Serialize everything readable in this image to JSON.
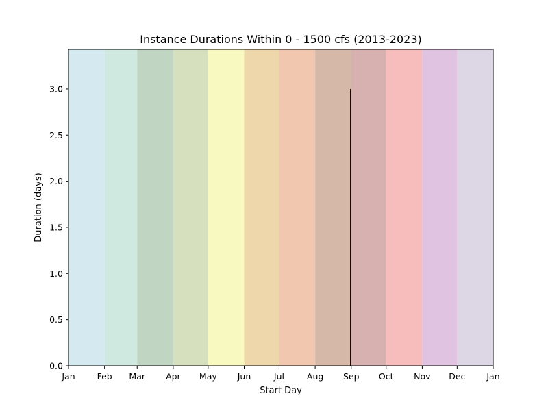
{
  "chart_data": {
    "type": "bar",
    "title": "Instance Durations Within 0 - 1500 cfs (2013-2023)",
    "xlabel": "Start Day",
    "ylabel": "Duration (days)",
    "x_unit": "day_of_year",
    "xlim": [
      1,
      366
    ],
    "ylim": [
      0,
      3.43
    ],
    "grid": false,
    "x_ticks": [
      {
        "label": "Jan",
        "day": 1
      },
      {
        "label": "Feb",
        "day": 32
      },
      {
        "label": "Mar",
        "day": 60
      },
      {
        "label": "Apr",
        "day": 91
      },
      {
        "label": "May",
        "day": 121
      },
      {
        "label": "Jun",
        "day": 152
      },
      {
        "label": "Jul",
        "day": 182
      },
      {
        "label": "Aug",
        "day": 213
      },
      {
        "label": "Sep",
        "day": 244
      },
      {
        "label": "Oct",
        "day": 274
      },
      {
        "label": "Nov",
        "day": 305
      },
      {
        "label": "Dec",
        "day": 335
      },
      {
        "label": "Jan",
        "day": 366
      }
    ],
    "y_ticks": [
      "0.0",
      "0.5",
      "1.0",
      "1.5",
      "2.0",
      "2.5",
      "3.0"
    ],
    "month_bands": [
      {
        "start": 1,
        "end": 32,
        "color": "#d4eaf0"
      },
      {
        "start": 32,
        "end": 60,
        "color": "#d0e9e0"
      },
      {
        "start": 60,
        "end": 91,
        "color": "#c1d5c3"
      },
      {
        "start": 91,
        "end": 121,
        "color": "#d6e0bf"
      },
      {
        "start": 121,
        "end": 152,
        "color": "#f8f9c0"
      },
      {
        "start": 152,
        "end": 182,
        "color": "#eed7aa"
      },
      {
        "start": 182,
        "end": 213,
        "color": "#f2c7b0"
      },
      {
        "start": 213,
        "end": 244,
        "color": "#d5b8a8"
      },
      {
        "start": 244,
        "end": 274,
        "color": "#d6b1af"
      },
      {
        "start": 274,
        "end": 305,
        "color": "#f7bdbc"
      },
      {
        "start": 305,
        "end": 335,
        "color": "#dfc3e1"
      },
      {
        "start": 335,
        "end": 366,
        "color": "#dcd6e5"
      }
    ],
    "bars": [
      {
        "start_day": 243,
        "duration": 3.0
      }
    ],
    "bar_color": "#000000"
  }
}
